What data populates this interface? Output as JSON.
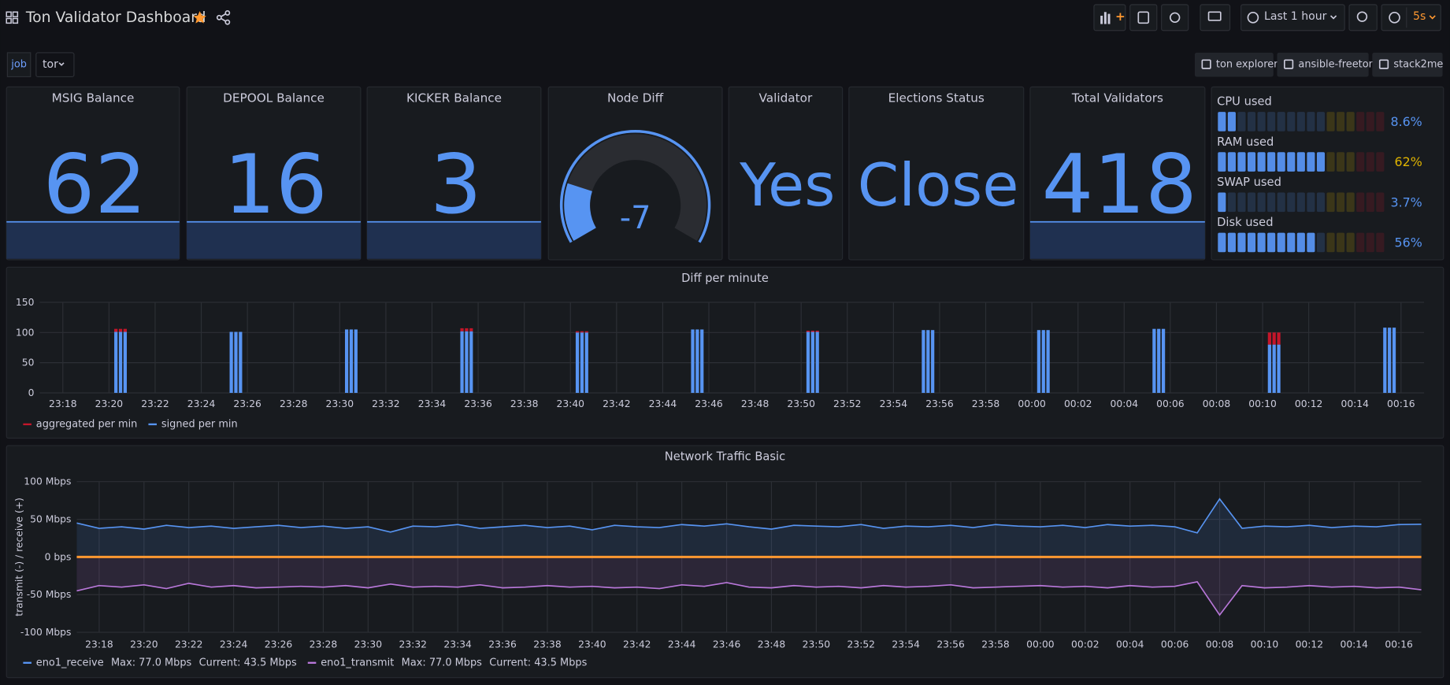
{
  "header": {
    "title": "Ton Validator Dashboard",
    "time_range": "Last 1 hour",
    "refresh": "5s"
  },
  "variables": {
    "label": "job",
    "value": "tor"
  },
  "links": [
    "ton explorer",
    "ansible-freeton",
    "stack2me"
  ],
  "stats": [
    {
      "title": "MSIG Balance",
      "value": 62
    },
    {
      "title": "DEPOOL Balance",
      "value": 16
    },
    {
      "title": "KICKER Balance",
      "value": 3
    },
    {
      "title": "Validator",
      "value": "Yes"
    },
    {
      "title": "Elections Status",
      "value": "Close"
    },
    {
      "title": "Total Validators",
      "value": 418
    }
  ],
  "gauge": {
    "title": "Node Diff",
    "value": -7,
    "range": [
      -10,
      5
    ],
    "color": "#5794f2"
  },
  "bar_gauge": {
    "range": [
      0,
      100
    ],
    "base_color": "#5794f2",
    "thresholds": [
      {
        "value": 60,
        "color": "#e0b400"
      },
      {
        "value": 80,
        "color": "#c4162a"
      }
    ],
    "items": [
      {
        "label": "CPU used",
        "value": 8.6,
        "value_label": "8.6%"
      },
      {
        "label": "RAM used",
        "value": 62,
        "value_label": "62%"
      },
      {
        "label": "SWAP used",
        "value": 3.7,
        "value_label": "3.7%"
      },
      {
        "label": "Disk used",
        "value": 56,
        "value_label": "56%"
      }
    ]
  },
  "chart_data": [
    {
      "type": "bar",
      "title": "Diff per minute",
      "stacked": true,
      "grid": true,
      "x": [
        "23:20:18",
        "23:20:30",
        "23:20:42",
        "23:25:18",
        "23:25:30",
        "23:25:42",
        "23:30:18",
        "23:30:30",
        "23:30:42",
        "23:35:18",
        "23:35:30",
        "23:35:42",
        "23:40:18",
        "23:40:30",
        "23:40:42",
        "23:45:18",
        "23:45:30",
        "23:45:42",
        "23:50:18",
        "23:50:30",
        "23:50:42",
        "23:55:18",
        "23:55:30",
        "23:55:42",
        "00:00:18",
        "00:00:30",
        "00:00:42",
        "00:05:18",
        "00:05:30",
        "00:05:42",
        "00:10:18",
        "00:10:30",
        "00:10:42",
        "00:15:18",
        "00:15:30",
        "00:15:42"
      ],
      "xlim": [
        "23:17",
        "00:17"
      ],
      "xticks": [
        "23:18",
        "23:20",
        "23:22",
        "23:24",
        "23:26",
        "23:28",
        "23:30",
        "23:32",
        "23:34",
        "23:36",
        "23:38",
        "23:40",
        "23:42",
        "23:44",
        "23:46",
        "23:48",
        "23:50",
        "23:52",
        "23:54",
        "23:56",
        "23:58",
        "00:00",
        "00:02",
        "00:04",
        "00:06",
        "00:08",
        "00:10",
        "00:12",
        "00:14",
        "00:16"
      ],
      "ylim": [
        0,
        150
      ],
      "yticks": [
        0,
        50,
        100,
        150
      ],
      "series": [
        {
          "name": "aggregated per min",
          "color": "#c4162a",
          "values": [
            5,
            5,
            5,
            0,
            0,
            0,
            0,
            0,
            0,
            5,
            5,
            5,
            2,
            2,
            2,
            0,
            0,
            0,
            2,
            2,
            2,
            0,
            0,
            0,
            0,
            0,
            0,
            0,
            0,
            0,
            20,
            20,
            20,
            0,
            0,
            0
          ]
        },
        {
          "name": "signed per min",
          "color": "#5794f2",
          "values": [
            101,
            101,
            101,
            101,
            101,
            101,
            105,
            105,
            105,
            102,
            102,
            102,
            100,
            100,
            100,
            105,
            105,
            105,
            101,
            101,
            101,
            104,
            104,
            104,
            104,
            104,
            104,
            106,
            106,
            106,
            80,
            80,
            80,
            108,
            108,
            108
          ]
        }
      ]
    },
    {
      "type": "line",
      "title": "Network Traffic Basic",
      "ylabel": "transmit (-) / receive (+)",
      "grid": true,
      "x": [
        "23:17",
        "23:18",
        "23:19",
        "23:20",
        "23:21",
        "23:22",
        "23:23",
        "23:24",
        "23:25",
        "23:26",
        "23:27",
        "23:28",
        "23:29",
        "23:30",
        "23:31",
        "23:32",
        "23:33",
        "23:34",
        "23:35",
        "23:36",
        "23:37",
        "23:38",
        "23:39",
        "23:40",
        "23:41",
        "23:42",
        "23:43",
        "23:44",
        "23:45",
        "23:46",
        "23:47",
        "23:48",
        "23:49",
        "23:50",
        "23:51",
        "23:52",
        "23:53",
        "23:54",
        "23:55",
        "23:56",
        "23:57",
        "23:58",
        "23:59",
        "00:00",
        "00:01",
        "00:02",
        "00:03",
        "00:04",
        "00:05",
        "00:06",
        "00:07",
        "00:08",
        "00:09",
        "00:10",
        "00:11",
        "00:12",
        "00:13",
        "00:14",
        "00:15",
        "00:16",
        "00:17"
      ],
      "xlim": [
        "23:17",
        "00:17"
      ],
      "xticks": [
        "23:18",
        "23:20",
        "23:22",
        "23:24",
        "23:26",
        "23:28",
        "23:30",
        "23:32",
        "23:34",
        "23:36",
        "23:38",
        "23:40",
        "23:42",
        "23:44",
        "23:46",
        "23:48",
        "23:50",
        "23:52",
        "23:54",
        "23:56",
        "23:58",
        "00:00",
        "00:02",
        "00:04",
        "00:06",
        "00:08",
        "00:10",
        "00:12",
        "00:14",
        "00:16"
      ],
      "ylim": [
        -100,
        100
      ],
      "yticks": [
        {
          "value": -100,
          "label": "-100 Mbps"
        },
        {
          "value": -50,
          "label": "-50 Mbps"
        },
        {
          "value": 0,
          "label": "0 bps"
        },
        {
          "value": 50,
          "label": "50 Mbps"
        },
        {
          "value": 100,
          "label": "100 Mbps"
        }
      ],
      "series": [
        {
          "name": "eno1_receive",
          "color": "#5794f2",
          "legend_stats": [
            "Max: 77.0 Mbps",
            "Current: 43.5 Mbps"
          ],
          "values": [
            45,
            38,
            40,
            37,
            42,
            39,
            41,
            38,
            40,
            42,
            39,
            41,
            38,
            40,
            33,
            41,
            40,
            43,
            38,
            40,
            42,
            39,
            41,
            36,
            42,
            40,
            39,
            43,
            41,
            44,
            40,
            37,
            42,
            41,
            40,
            43,
            38,
            41,
            40,
            42,
            39,
            43,
            41,
            40,
            42,
            39,
            43,
            41,
            42,
            40,
            32,
            77,
            38,
            41,
            40,
            42,
            39,
            41,
            40,
            43,
            43.5
          ]
        },
        {
          "name": "eno1_transmit",
          "color": "#b877d9",
          "legend_stats": [
            "Max: 77.0 Mbps",
            "Current: 43.5 Mbps"
          ],
          "values": [
            -45,
            -38,
            -40,
            -37,
            -42,
            -35,
            -40,
            -38,
            -41,
            -40,
            -39,
            -40,
            -38,
            -41,
            -36,
            -40,
            -39,
            -40,
            -37,
            -41,
            -40,
            -38,
            -40,
            -39,
            -41,
            -40,
            -42,
            -37,
            -39,
            -34,
            -40,
            -41,
            -38,
            -40,
            -39,
            -41,
            -38,
            -40,
            -39,
            -37,
            -41,
            -40,
            -39,
            -38,
            -40,
            -39,
            -41,
            -38,
            -40,
            -39,
            -33,
            -77,
            -38,
            -41,
            -40,
            -38,
            -40,
            -39,
            -41,
            -40,
            -43.5
          ]
        }
      ]
    }
  ]
}
